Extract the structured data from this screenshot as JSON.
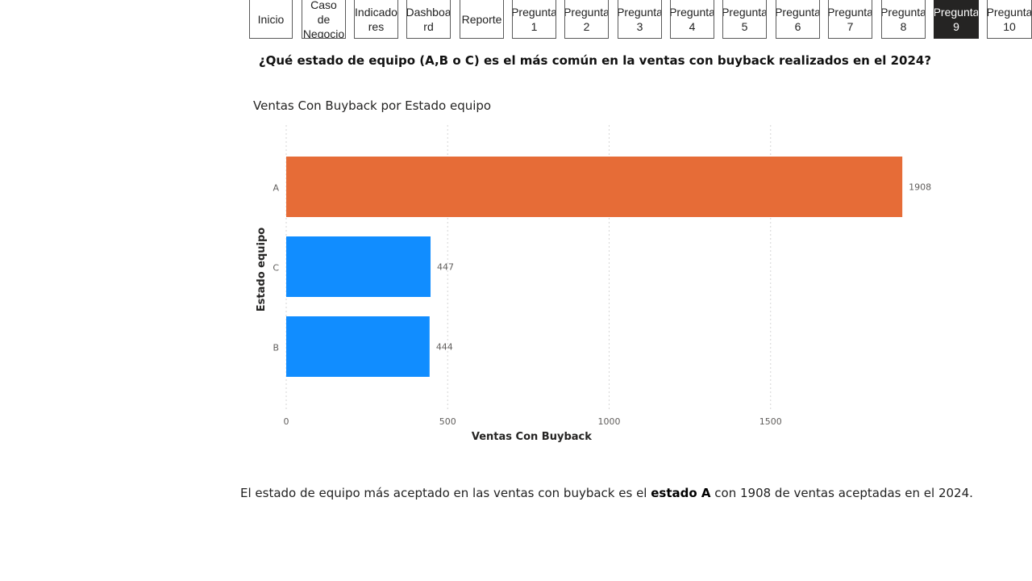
{
  "nav": {
    "buttons": [
      {
        "label": "Inicio",
        "active": false
      },
      {
        "label": "Caso de\nNegocio",
        "active": false
      },
      {
        "label": "Indicado\nres",
        "active": false
      },
      {
        "label": "Dashboa\nrd",
        "active": false
      },
      {
        "label": "Reporte",
        "active": false
      },
      {
        "label": "Pregunta\n1",
        "active": false
      },
      {
        "label": "Pregunta\n2",
        "active": false
      },
      {
        "label": "Pregunta\n3",
        "active": false
      },
      {
        "label": "Pregunta\n4",
        "active": false
      },
      {
        "label": "Pregunta\n5",
        "active": false
      },
      {
        "label": "Pregunta\n6",
        "active": false
      },
      {
        "label": "Pregunta\n7",
        "active": false
      },
      {
        "label": "Pregunta\n8",
        "active": false
      },
      {
        "label": "Pregunta\n9",
        "active": true
      },
      {
        "label": "Pregunta\n10",
        "active": false
      }
    ]
  },
  "question": "¿Qué estado de equipo (A,B o C) es el más común en la ventas con buyback realizados en el 2024?",
  "chart_data": {
    "type": "bar",
    "orientation": "horizontal",
    "title": "Ventas Con Buyback por Estado equipo",
    "xlabel": "Ventas Con Buyback",
    "ylabel": "Estado equipo",
    "categories": [
      "A",
      "C",
      "B"
    ],
    "values": [
      1908,
      447,
      444
    ],
    "data_labels": [
      "1908",
      "447",
      "444"
    ],
    "xlim": [
      0,
      2000
    ],
    "xticks": [
      0,
      500,
      1000,
      1500
    ],
    "xtick_labels": [
      "0",
      "500",
      "1000",
      "1500"
    ],
    "grid": true,
    "colors": [
      "#E66C37",
      "#118DFF",
      "#118DFF"
    ]
  },
  "answer": {
    "before": "El estado de equipo más aceptado en las ventas con buyback es el ",
    "bold": "estado A",
    "after": " con 1908 de ventas aceptadas en el 2024."
  }
}
